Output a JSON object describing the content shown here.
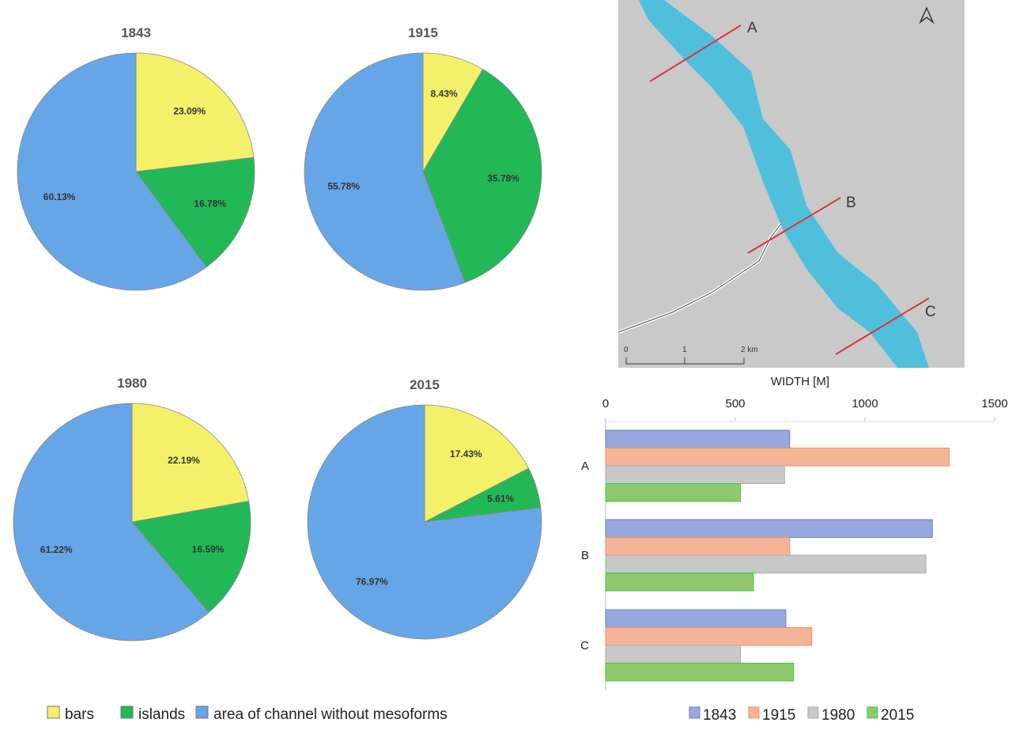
{
  "chart_data": [
    {
      "type": "pie",
      "charts": [
        {
          "title": "1843",
          "values": [
            23.09,
            16.78,
            60.13
          ],
          "labels": [
            "23.09%",
            "16.78%",
            "60.13%"
          ]
        },
        {
          "title": "1915",
          "values": [
            8.43,
            35.78,
            55.78
          ],
          "labels": [
            "8.43%",
            "35.78%",
            "55.78%"
          ]
        },
        {
          "title": "1980",
          "values": [
            22.19,
            16.59,
            61.22
          ],
          "labels": [
            "22.19%",
            "16.59%",
            "61.22%"
          ]
        },
        {
          "title": "2015",
          "values": [
            17.43,
            5.61,
            76.97
          ],
          "labels": [
            "17.43%",
            "5.61%",
            "76.97%"
          ]
        }
      ],
      "categories": [
        "bars",
        "islands",
        "area of channel without mesoforms"
      ],
      "colors": [
        "#f5f06a",
        "#22b857",
        "#66a6e6"
      ],
      "legend": "bottom"
    },
    {
      "type": "bar",
      "orientation": "horizontal",
      "xlabel": "WIDTH [M]",
      "xlim": [
        0,
        1500
      ],
      "xticks": [
        "0",
        "500",
        "1000",
        "1500"
      ],
      "categories": [
        "A",
        "B",
        "C"
      ],
      "series": [
        {
          "name": "1843",
          "values": [
            710,
            1260,
            695
          ],
          "color": "#97a8de"
        },
        {
          "name": "1915",
          "values": [
            1325,
            710,
            795
          ],
          "color": "#f5b497"
        },
        {
          "name": "1980",
          "values": [
            690,
            1235,
            520
          ],
          "color": "#c8c8c8"
        },
        {
          "name": "2015",
          "values": [
            520,
            570,
            725
          ],
          "color": "#90c870"
        }
      ],
      "legend": "bottom"
    }
  ],
  "map": {
    "section_labels": [
      "A",
      "B",
      "C"
    ],
    "scale_labels": [
      "0",
      "1",
      "2 km"
    ],
    "river_color": "#4fbfdc",
    "section_color": "#e0303c"
  }
}
